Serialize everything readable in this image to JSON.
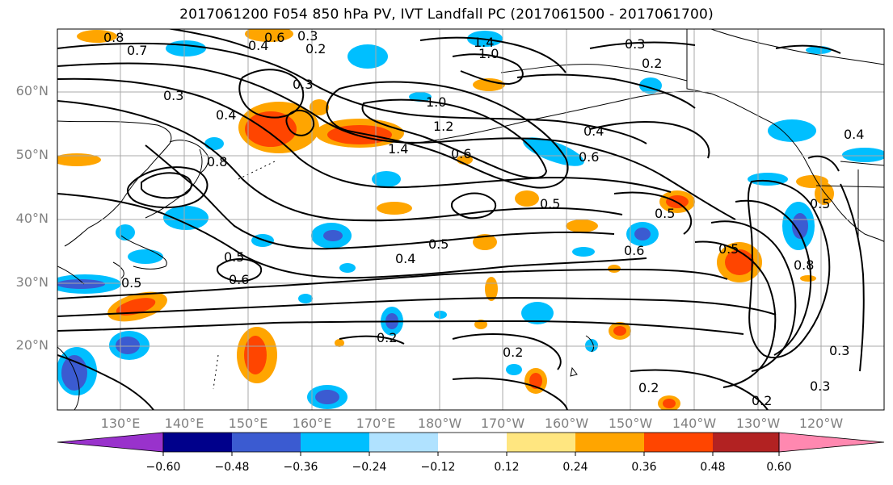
{
  "title": "2017061200 F054 850 hPa PV, IVT Landfall PC (2017061500 - 2017061700)",
  "lat_labels": [
    "60°N",
    "50°N",
    "40°N",
    "30°N",
    "20°N"
  ],
  "lon_labels": [
    "130°E",
    "140°E",
    "150°E",
    "160°E",
    "170°E",
    "180°W",
    "170°W",
    "160°W",
    "150°W",
    "140°W",
    "130°W",
    "120°W"
  ],
  "colorbar": {
    "colors": [
      "#9932cc",
      "#00008b",
      "#3b5bd1",
      "#00bfff",
      "#b0e2ff",
      "#ffffff",
      "#ffe680",
      "#ffa500",
      "#ff4500",
      "#b22222",
      "#ff88b0"
    ],
    "tick_labels": [
      "−0.60",
      "−0.48",
      "−0.36",
      "−0.24",
      "−0.12",
      "0.12",
      "0.24",
      "0.36",
      "0.48",
      "0.60"
    ]
  },
  "contour_labels": [
    "0.8",
    "0.7",
    "0.6",
    "0.4",
    "0.3",
    "0.2",
    "0.3",
    "1.4",
    "1.0",
    "0.3",
    "0.2",
    "0.3",
    "0.4",
    "1.0",
    "1.2",
    "1.4",
    "0.6",
    "0.4",
    "0.6",
    "0.8",
    "0.5",
    "0.5",
    "0.6",
    "0.5",
    "0.4",
    "0.5",
    "0.5",
    "0.6",
    "0.5",
    "0.2",
    "0.2",
    "0.2",
    "0.2",
    "0.3",
    "0.3",
    "0.4",
    "0.8",
    "0.5"
  ]
}
